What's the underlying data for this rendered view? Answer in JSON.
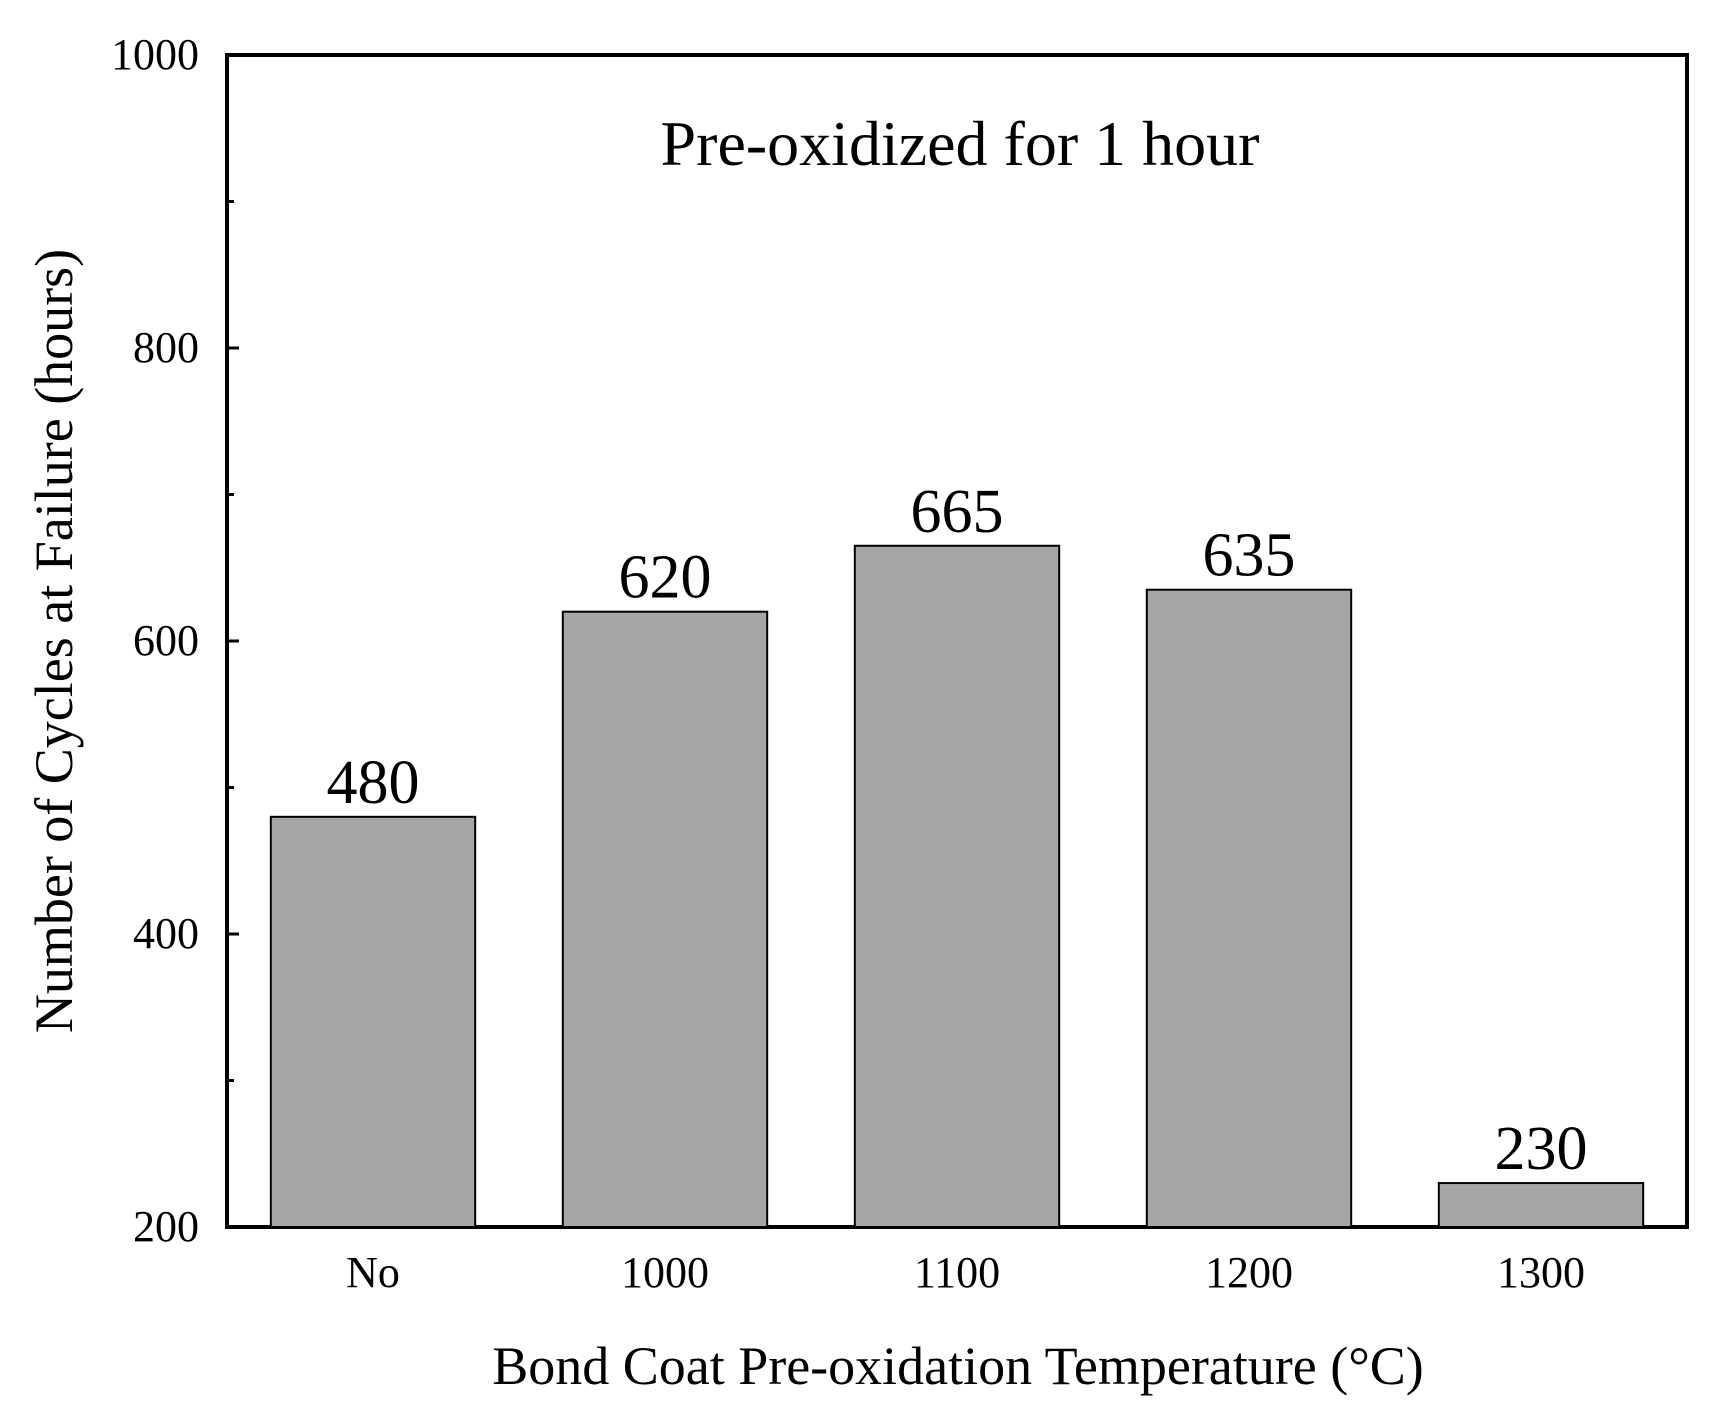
{
  "chart_data": {
    "type": "bar",
    "title": "",
    "annotation": "Pre-oxidized for 1 hour",
    "xlabel": "Bond Coat Pre-oxidation Temperature (°C)",
    "ylabel": "Number of Cycles at Failure (hours)",
    "categories": [
      "No",
      "1000",
      "1100",
      "1200",
      "1300"
    ],
    "values": [
      480,
      620,
      665,
      635,
      230
    ],
    "value_labels": [
      "480",
      "620",
      "665",
      "635",
      "230"
    ],
    "ylim": [
      200,
      1000
    ],
    "yticks": [
      200,
      400,
      600,
      800,
      1000
    ],
    "ytick_labels": [
      "200",
      "400",
      "600",
      "800",
      "1000"
    ],
    "yminor_ticks": [
      300,
      500,
      700,
      900
    ],
    "grid": false,
    "colors": {
      "bar_fill": "#a6a6a6",
      "bar_stroke": "#000000",
      "axis": "#000000"
    }
  }
}
